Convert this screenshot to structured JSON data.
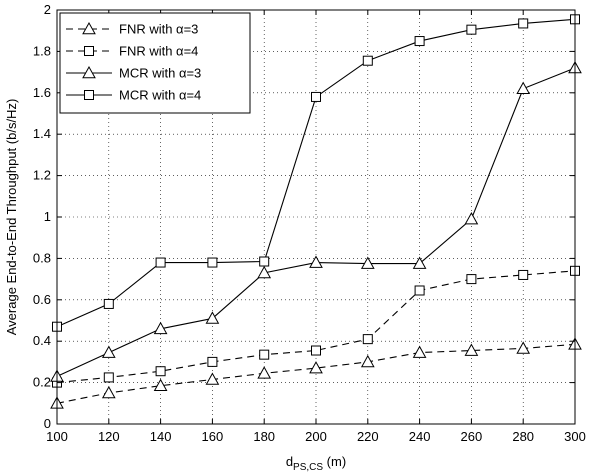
{
  "chart_data": {
    "type": "line",
    "title": "",
    "xlabel": "d",
    "xlabel_sub": "PS,CS",
    "xlabel_unit": " (m)",
    "ylabel": "Average End-to-End Throughput (b/s/Hz)",
    "xlim": [
      100,
      300
    ],
    "ylim": [
      0,
      2
    ],
    "x": [
      100,
      120,
      140,
      160,
      180,
      200,
      220,
      240,
      260,
      280,
      300
    ],
    "x_ticks": [
      "100",
      "120",
      "140",
      "160",
      "180",
      "200",
      "220",
      "240",
      "260",
      "280",
      "300"
    ],
    "y_ticks": [
      0,
      0.2,
      0.4,
      0.6,
      0.8,
      1,
      1.2,
      1.4,
      1.6,
      1.8,
      2
    ],
    "y_tick_labels": [
      "0",
      "0.2",
      "0.4",
      "0.6",
      "0.8",
      "1",
      "1.2",
      "1.4",
      "1.6",
      "1.8",
      "2"
    ],
    "grid": true,
    "legend_position": "top-left",
    "series": [
      {
        "name": "FNR with α=3",
        "line": "dashed",
        "marker": "triangle",
        "values": [
          0.1,
          0.15,
          0.185,
          0.215,
          0.245,
          0.27,
          0.3,
          0.345,
          0.355,
          0.365,
          0.385
        ]
      },
      {
        "name": "FNR with α=4",
        "line": "dashed",
        "marker": "square",
        "values": [
          0.2,
          0.225,
          0.255,
          0.3,
          0.335,
          0.355,
          0.41,
          0.645,
          0.7,
          0.72,
          0.74
        ]
      },
      {
        "name": "MCR with α=3",
        "line": "solid",
        "marker": "triangle",
        "values": [
          0.23,
          0.345,
          0.46,
          0.51,
          0.73,
          0.78,
          0.775,
          0.775,
          0.99,
          1.62,
          1.72
        ]
      },
      {
        "name": "MCR with α=4",
        "line": "solid",
        "marker": "square",
        "values": [
          0.47,
          0.58,
          0.78,
          0.78,
          0.785,
          1.58,
          1.755,
          1.85,
          1.905,
          1.935,
          1.955
        ]
      }
    ]
  }
}
